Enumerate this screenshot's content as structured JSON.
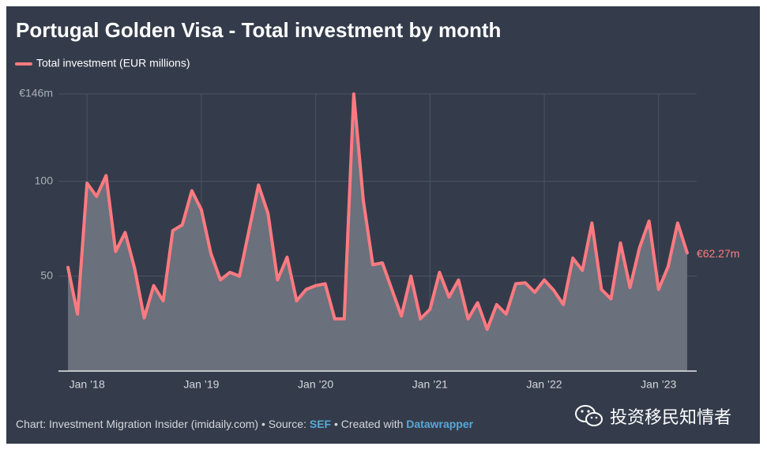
{
  "chart_data": {
    "type": "area",
    "title": "Portugal Golden Visa - Total investment by month",
    "x": [
      "2017-11",
      "2017-12",
      "2018-01",
      "2018-02",
      "2018-03",
      "2018-04",
      "2018-05",
      "2018-06",
      "2018-07",
      "2018-08",
      "2018-09",
      "2018-10",
      "2018-11",
      "2018-12",
      "2019-01",
      "2019-02",
      "2019-03",
      "2019-04",
      "2019-05",
      "2019-06",
      "2019-07",
      "2019-08",
      "2019-09",
      "2019-10",
      "2019-11",
      "2019-12",
      "2020-01",
      "2020-02",
      "2020-03",
      "2020-04",
      "2020-05",
      "2020-06",
      "2020-07",
      "2020-08",
      "2020-09",
      "2020-10",
      "2020-11",
      "2020-12",
      "2021-01",
      "2021-02",
      "2021-03",
      "2021-04",
      "2021-05",
      "2021-06",
      "2021-07",
      "2021-08",
      "2021-09",
      "2021-10",
      "2021-11",
      "2021-12",
      "2022-01",
      "2022-02",
      "2022-03",
      "2022-04",
      "2022-05",
      "2022-06",
      "2022-07",
      "2022-08",
      "2022-09",
      "2022-10",
      "2022-11",
      "2022-12",
      "2023-01",
      "2023-02",
      "2023-03",
      "2023-04"
    ],
    "series": [
      {
        "name": "Total investment (EUR millions)",
        "color": "#ff7a80",
        "values": [
          54.6,
          30,
          99,
          92,
          103,
          63,
          73,
          54,
          28,
          45,
          37,
          74,
          77,
          95,
          85,
          62,
          48,
          52,
          50,
          74,
          98,
          83,
          48,
          60,
          37,
          43,
          45,
          46,
          27.5,
          27.5,
          146,
          90,
          56,
          57,
          43,
          29,
          50,
          27.5,
          32.5,
          52,
          39,
          48,
          27.5,
          36,
          22,
          35,
          30,
          46,
          46.5,
          41.5,
          48,
          42.5,
          35,
          59.5,
          53,
          78,
          43,
          38,
          67.5,
          44,
          65,
          79,
          43,
          55,
          78,
          62.27
        ],
        "value_labels": [
          null,
          null,
          null,
          null,
          null,
          null,
          null,
          null,
          null,
          null,
          null,
          null,
          null,
          null,
          null,
          null,
          null,
          null,
          null,
          null,
          null,
          null,
          null,
          null,
          null,
          null,
          null,
          null,
          null,
          null,
          null,
          null,
          null,
          null,
          null,
          null,
          null,
          null,
          null,
          null,
          null,
          null,
          null,
          null,
          null,
          null,
          null,
          null,
          null,
          null,
          null,
          null,
          null,
          null,
          null,
          null,
          null,
          null,
          null,
          null,
          null,
          null,
          null,
          null,
          null,
          "€62.27m"
        ]
      }
    ],
    "xlim": [
      "2017-10",
      "2023-05"
    ],
    "xticks": [
      {
        "value": "2018-01",
        "label": "Jan ’18"
      },
      {
        "value": "2019-01",
        "label": "Jan ’19"
      },
      {
        "value": "2020-01",
        "label": "Jan ’20"
      },
      {
        "value": "2021-01",
        "label": "Jan ’21"
      },
      {
        "value": "2022-01",
        "label": "Jan ’22"
      },
      {
        "value": "2023-01",
        "label": "Jan ’23"
      }
    ],
    "ylim": [
      0,
      146
    ],
    "yticks": [
      {
        "value": 146,
        "label": "€146m"
      },
      100,
      50
    ],
    "grid": true,
    "source": {
      "prefix": "Chart: Investment Migration Insider (imidaily.com) • Source: ",
      "source_link": "SEF",
      "middle": " • Created with ",
      "tool_link": "Datawrapper"
    },
    "watermark": "投资移民知情者"
  }
}
